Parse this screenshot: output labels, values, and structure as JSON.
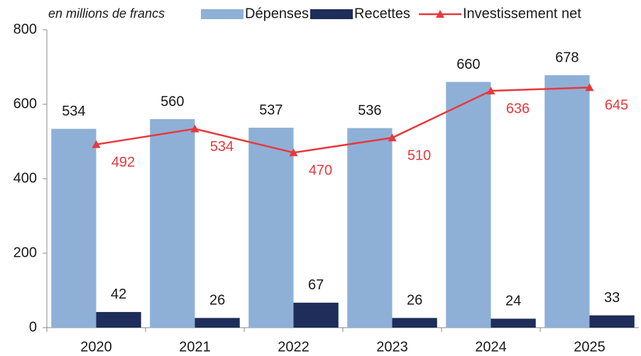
{
  "chart_data": {
    "type": "bar",
    "subtitle": "en millions de francs",
    "categories": [
      "2020",
      "2021",
      "2022",
      "2023",
      "2024",
      "2025"
    ],
    "series": [
      {
        "name": "Dépenses",
        "color": "#8eb0d6",
        "type": "bar",
        "values": [
          534,
          560,
          537,
          536,
          660,
          678
        ]
      },
      {
        "name": "Recettes",
        "color": "#1f2d5a",
        "type": "bar",
        "values": [
          42,
          26,
          67,
          26,
          24,
          33
        ]
      },
      {
        "name": "Investissement net",
        "color": "#e8383d",
        "type": "line",
        "values": [
          492,
          534,
          470,
          510,
          636,
          645
        ]
      }
    ],
    "ylim": [
      0,
      800
    ],
    "yticks": [
      0,
      200,
      400,
      600,
      800
    ],
    "grid": false
  }
}
